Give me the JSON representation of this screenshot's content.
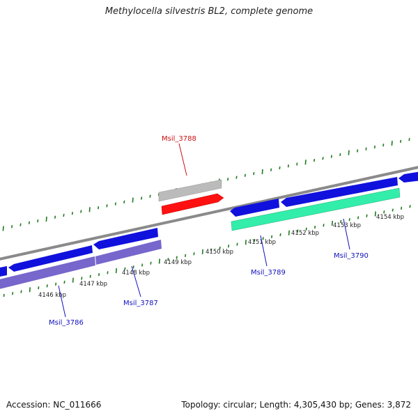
{
  "title": "Methylocella silvestris BL2, complete genome",
  "footer": {
    "accession": "Accession: NC_011666",
    "summary": "Topology: circular; Length: 4,305,430 bp; Genes: 3,872"
  },
  "colors": {
    "backbone": "#8a8a8a",
    "tick": "#1e7a1e",
    "forward_gene": "#1111dd",
    "cds_purple": "#7766cc",
    "cds_green": "#33eeaa",
    "highlight_gene": "#ff1111",
    "highlight_cds": "#bbbbbb",
    "label_blue": "#1010bb",
    "label_red": "#cc1010"
  },
  "ruler": [
    {
      "label": "4146 kbp",
      "kbp": 4146
    },
    {
      "label": "4147 kbp",
      "kbp": 4147
    },
    {
      "label": "4148 kbp",
      "kbp": 4148
    },
    {
      "label": "4149 kbp",
      "kbp": 4149
    },
    {
      "label": "4150 kbp",
      "kbp": 4150
    },
    {
      "label": "4151 kbp",
      "kbp": 4151
    },
    {
      "label": "4152 kbp",
      "kbp": 4152
    },
    {
      "label": "4153 kbp",
      "kbp": 4153
    },
    {
      "label": "4154 kbp",
      "kbp": 4154
    }
  ],
  "gene_labels": [
    {
      "name": "Msil_3786",
      "color": "label_blue"
    },
    {
      "name": "Msil_3787",
      "color": "label_blue"
    },
    {
      "name": "Msil_3788",
      "color": "label_red"
    },
    {
      "name": "Msil_3789",
      "color": "label_blue"
    },
    {
      "name": "Msil_3790",
      "color": "label_blue"
    }
  ]
}
